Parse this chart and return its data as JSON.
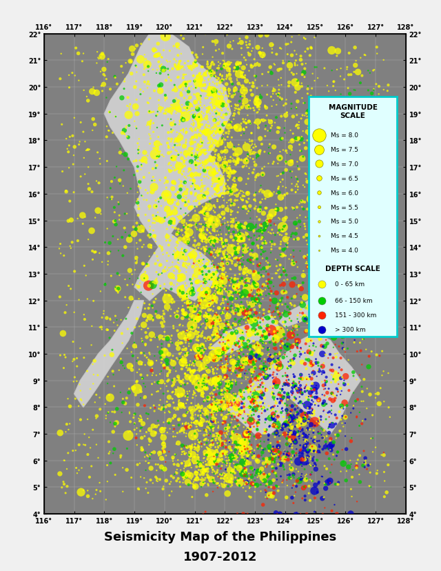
{
  "title_line1": "Seismicity Map of the Philippines",
  "title_line2": "1907-2012",
  "lon_min": 116,
  "lon_max": 128,
  "lat_min": 4,
  "lat_max": 22,
  "lon_ticks": [
    116,
    117,
    118,
    119,
    120,
    121,
    122,
    123,
    124,
    125,
    126,
    127,
    128
  ],
  "lat_ticks": [
    4,
    5,
    6,
    7,
    8,
    9,
    10,
    11,
    12,
    13,
    14,
    15,
    16,
    17,
    18,
    19,
    20,
    21,
    22
  ],
  "background_color": "#808080",
  "map_bg": "#909090",
  "legend_bg": "#e0ffff",
  "legend_border": "#00cccc",
  "magnitude_labels": [
    "Ms = 8.0",
    "Ms = 7.5",
    "Ms = 7.0",
    "Ms = 6.5",
    "Ms = 6.0",
    "Ms = 5.5",
    "Ms = 5.0",
    "Ms = 4.5",
    "Ms = 4.0"
  ],
  "magnitude_sizes": [
    180,
    120,
    80,
    50,
    30,
    18,
    10,
    6,
    3
  ],
  "depth_labels": [
    "0 - 65 km",
    "66 - 150 km",
    "151 - 300 km",
    "> 300 km"
  ],
  "depth_color_list": [
    "#ffff00",
    "#00cc00",
    "#ff2200",
    "#0000cc"
  ],
  "land_color": "#d0d0d0",
  "sea_color": "#808080",
  "fig_bg": "#f0f0f0"
}
